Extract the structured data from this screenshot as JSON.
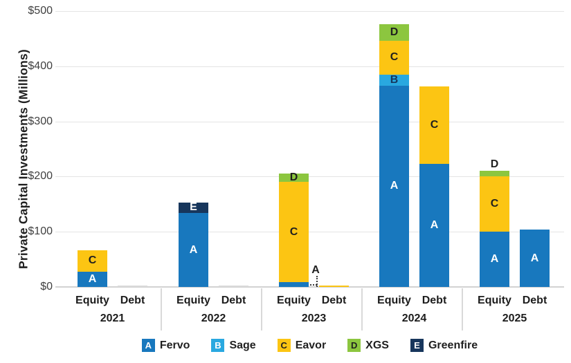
{
  "chart_data": {
    "type": "stacked-bar",
    "title": "",
    "xlabel": "",
    "ylabel": "Private Capital Investments (Millions)",
    "ylim": [
      0,
      500
    ],
    "grid": "horizontal",
    "legend_position": "bottom",
    "y_ticks": [
      {
        "label": "$0",
        "value": 0
      },
      {
        "label": "$100",
        "value": 100
      },
      {
        "label": "$200",
        "value": 200
      },
      {
        "label": "$300",
        "value": 300
      },
      {
        "label": "$400",
        "value": 400
      },
      {
        "label": "$500",
        "value": 500
      }
    ],
    "legend": [
      {
        "letter": "A",
        "name": "Fervo",
        "color": "#1878be",
        "legend_letter_color": "#ffffff",
        "bar_letter_color": "#ffffff"
      },
      {
        "letter": "B",
        "name": "Sage",
        "color": "#29a8e0",
        "legend_letter_color": "#ffffff",
        "bar_letter_color": "#16365c"
      },
      {
        "letter": "C",
        "name": "Eavor",
        "color": "#fcc513",
        "legend_letter_color": "#1f1f1f",
        "bar_letter_color": "#1f1f1f"
      },
      {
        "letter": "D",
        "name": "XGS",
        "color": "#8cc63f",
        "legend_letter_color": "#1f1f1f",
        "bar_letter_color": "#1f1f1f"
      },
      {
        "letter": "E",
        "name": "Greenfire",
        "color": "#17365c",
        "legend_letter_color": "#ffffff",
        "bar_letter_color": "#ffffff"
      }
    ],
    "groups": [
      {
        "year": "2021",
        "bars": [
          {
            "label": "Equity",
            "segments": [
              {
                "letter": "A",
                "value": 27
              },
              {
                "letter": "C",
                "value": 40
              }
            ]
          },
          {
            "label": "Debt",
            "segments": [
              {
                "letter": null,
                "color": "#d9d9d9",
                "value": 2
              }
            ]
          }
        ]
      },
      {
        "year": "2022",
        "bars": [
          {
            "label": "Equity",
            "segments": [
              {
                "letter": "A",
                "value": 134
              },
              {
                "letter": "E",
                "value": 19
              }
            ]
          },
          {
            "label": "Debt",
            "segments": [
              {
                "letter": null,
                "color": "#d9d9d9",
                "value": 2
              }
            ]
          }
        ]
      },
      {
        "year": "2023",
        "bars": [
          {
            "label": "Equity",
            "segments": [
              {
                "letter": "A",
                "value": 9,
                "label_pos": "callout"
              },
              {
                "letter": "C",
                "value": 181
              },
              {
                "letter": "D",
                "value": 15
              }
            ]
          },
          {
            "label": "Debt",
            "segments": [
              {
                "letter": "C",
                "value": 2,
                "show_letter": false
              }
            ]
          }
        ]
      },
      {
        "year": "2024",
        "bars": [
          {
            "label": "Equity",
            "segments": [
              {
                "letter": "A",
                "value": 365
              },
              {
                "letter": "B",
                "value": 20
              },
              {
                "letter": "C",
                "value": 61
              },
              {
                "letter": "D",
                "value": 30
              }
            ]
          },
          {
            "label": "Debt",
            "segments": [
              {
                "letter": "A",
                "value": 223
              },
              {
                "letter": "C",
                "value": 141
              }
            ]
          }
        ]
      },
      {
        "year": "2025",
        "bars": [
          {
            "label": "Equity",
            "segments": [
              {
                "letter": "A",
                "value": 100
              },
              {
                "letter": "C",
                "value": 101
              },
              {
                "letter": "D",
                "value": 10,
                "label_pos": "above"
              }
            ]
          },
          {
            "label": "Debt",
            "segments": [
              {
                "letter": "A",
                "value": 104
              }
            ]
          }
        ]
      }
    ]
  }
}
